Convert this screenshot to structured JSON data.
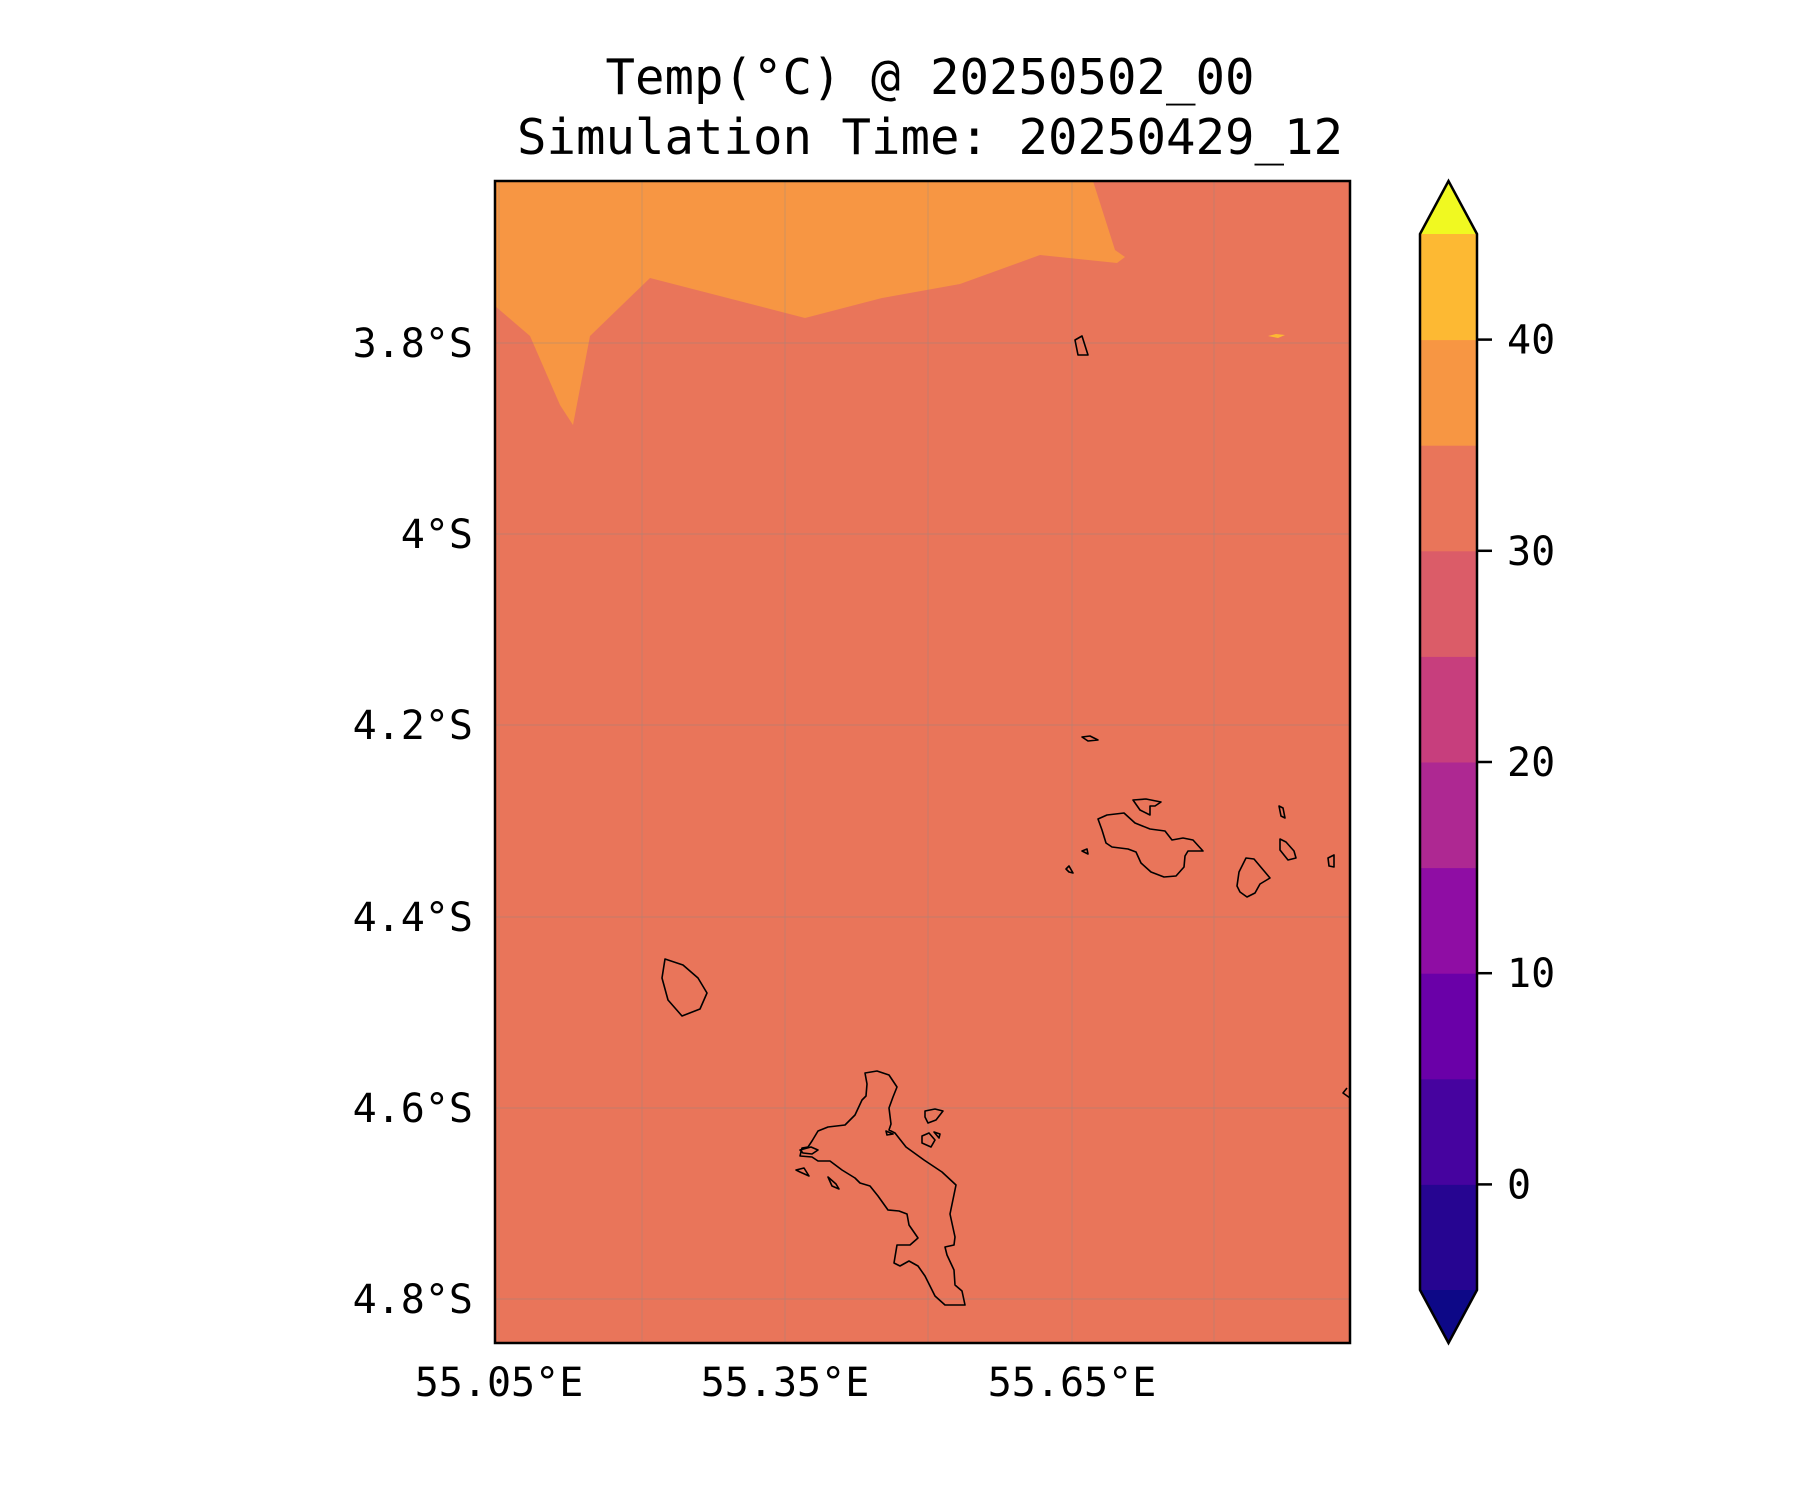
{
  "title": {
    "line1": "Temp(°C) @ 20250502_00",
    "line2": "Simulation Time: 20250429_12"
  },
  "map": {
    "variable": "Temperature",
    "units": "°C",
    "lat_ticks": [
      "3.8°S",
      "4°S",
      "4.2°S",
      "4.4°S",
      "4.6°S",
      "4.8°S"
    ],
    "lon_ticks": [
      "55.05°E",
      "55.35°E",
      "55.65°E"
    ],
    "field_colors": {
      "background": "#E9755A",
      "warm_region": "#F79643",
      "hot_spot": "#FDB933"
    },
    "coastline_color": "#000000",
    "gridlines": true
  },
  "colorbar": {
    "ticks": [
      "0",
      "10",
      "20",
      "30",
      "40"
    ],
    "extend": "both",
    "levels": [
      -5,
      0,
      5,
      10,
      15,
      20,
      25,
      30,
      35,
      40,
      45
    ],
    "under_color": "#0D0887",
    "over_color": "#F0F921",
    "band_colors": [
      "#260591",
      "#46039F",
      "#6A00A8",
      "#8F0DA4",
      "#AE2892",
      "#C73E7D",
      "#DB5C68",
      "#E9755A",
      "#F79643",
      "#FDB933",
      "#F0E023"
    ]
  }
}
